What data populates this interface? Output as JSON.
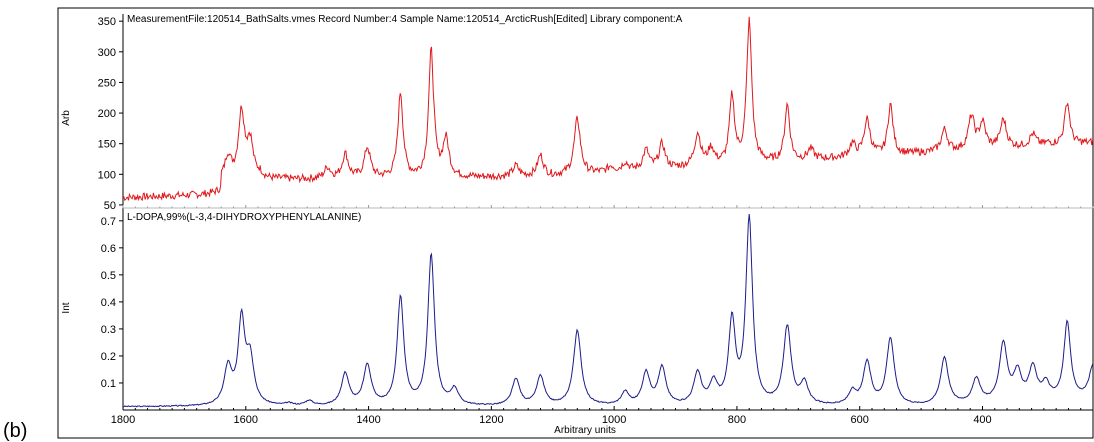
{
  "panel_label": "(b)",
  "chart_data": [
    {
      "type": "line",
      "title": "MeasurementFile:120514_BathSalts.vmes Record Number:4 Sample Name:120514_ArcticRush[Edited] Library component:A",
      "ylabel": "Arb",
      "xlabel": "",
      "xlim": [
        1800,
        220
      ],
      "ylim": [
        45,
        365
      ],
      "yticks": [
        50,
        100,
        150,
        200,
        250,
        300,
        350
      ],
      "color": "#e0181c",
      "peaks": [
        {
          "x": 1629,
          "y": 128
        },
        {
          "x": 1607,
          "y": 200
        },
        {
          "x": 1593,
          "y": 150
        },
        {
          "x": 1577,
          "y": 98
        },
        {
          "x": 1540,
          "y": 92
        },
        {
          "x": 1467,
          "y": 110
        },
        {
          "x": 1438,
          "y": 132
        },
        {
          "x": 1402,
          "y": 142
        },
        {
          "x": 1348,
          "y": 232
        },
        {
          "x": 1298,
          "y": 300
        },
        {
          "x": 1274,
          "y": 155
        },
        {
          "x": 1160,
          "y": 113
        },
        {
          "x": 1120,
          "y": 130
        },
        {
          "x": 1060,
          "y": 190
        },
        {
          "x": 1005,
          "y": 112
        },
        {
          "x": 982,
          "y": 118
        },
        {
          "x": 948,
          "y": 138
        },
        {
          "x": 922,
          "y": 148
        },
        {
          "x": 864,
          "y": 165
        },
        {
          "x": 842,
          "y": 140
        },
        {
          "x": 808,
          "y": 224
        },
        {
          "x": 780,
          "y": 348
        },
        {
          "x": 718,
          "y": 212
        },
        {
          "x": 680,
          "y": 140
        },
        {
          "x": 612,
          "y": 148
        },
        {
          "x": 588,
          "y": 188
        },
        {
          "x": 550,
          "y": 213
        },
        {
          "x": 462,
          "y": 172
        },
        {
          "x": 418,
          "y": 192
        },
        {
          "x": 400,
          "y": 182
        },
        {
          "x": 366,
          "y": 188
        },
        {
          "x": 318,
          "y": 165
        },
        {
          "x": 293,
          "y": 150
        },
        {
          "x": 262,
          "y": 218
        }
      ]
    },
    {
      "type": "line",
      "title": "L-DOPA,99%(L-3,4-DIHYDROXYPHENYLALANINE)",
      "ylabel": "Int",
      "xlabel": "Arbitrary units",
      "xlim": [
        1800,
        220
      ],
      "ylim": [
        0.0,
        0.74
      ],
      "yticks": [
        0.1,
        0.2,
        0.3,
        0.4,
        0.5,
        0.6,
        0.7
      ],
      "xticks": [
        1800,
        1600,
        1400,
        1200,
        1000,
        800,
        600,
        400
      ],
      "color": "#1c1c8a",
      "peaks": [
        {
          "x": 1629,
          "y": 0.15
        },
        {
          "x": 1607,
          "y": 0.32
        },
        {
          "x": 1593,
          "y": 0.18
        },
        {
          "x": 1530,
          "y": 0.02
        },
        {
          "x": 1497,
          "y": 0.03
        },
        {
          "x": 1438,
          "y": 0.13
        },
        {
          "x": 1402,
          "y": 0.16
        },
        {
          "x": 1348,
          "y": 0.41
        },
        {
          "x": 1298,
          "y": 0.57
        },
        {
          "x": 1260,
          "y": 0.07
        },
        {
          "x": 1160,
          "y": 0.11
        },
        {
          "x": 1120,
          "y": 0.12
        },
        {
          "x": 1060,
          "y": 0.29
        },
        {
          "x": 982,
          "y": 0.06
        },
        {
          "x": 948,
          "y": 0.13
        },
        {
          "x": 922,
          "y": 0.15
        },
        {
          "x": 864,
          "y": 0.13
        },
        {
          "x": 838,
          "y": 0.09
        },
        {
          "x": 808,
          "y": 0.32
        },
        {
          "x": 780,
          "y": 0.7
        },
        {
          "x": 718,
          "y": 0.3
        },
        {
          "x": 690,
          "y": 0.09
        },
        {
          "x": 612,
          "y": 0.06
        },
        {
          "x": 588,
          "y": 0.17
        },
        {
          "x": 550,
          "y": 0.26
        },
        {
          "x": 462,
          "y": 0.19
        },
        {
          "x": 410,
          "y": 0.11
        },
        {
          "x": 366,
          "y": 0.24
        },
        {
          "x": 343,
          "y": 0.13
        },
        {
          "x": 318,
          "y": 0.15
        },
        {
          "x": 297,
          "y": 0.09
        },
        {
          "x": 262,
          "y": 0.32
        },
        {
          "x": 220,
          "y": 0.16
        }
      ]
    }
  ]
}
